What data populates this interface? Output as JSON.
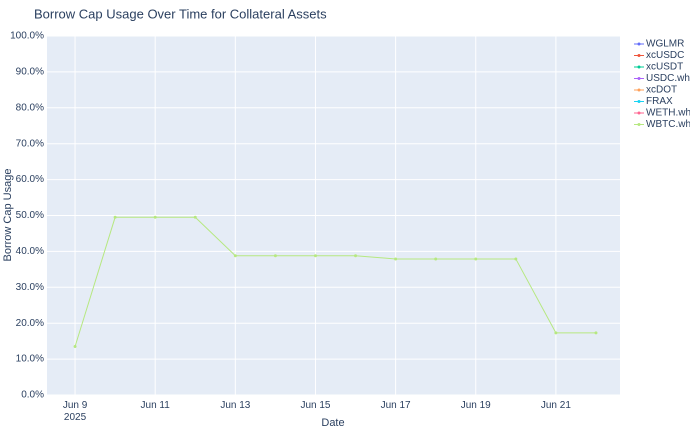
{
  "chart_data": {
    "type": "line",
    "title": "Borrow Cap Usage Over Time for Collateral Assets",
    "xlabel": "Date",
    "ylabel": "Borrow Cap Usage",
    "x": [
      "2025-06-09",
      "2025-06-10",
      "2025-06-11",
      "2025-06-12",
      "2025-06-13",
      "2025-06-14",
      "2025-06-15",
      "2025-06-16",
      "2025-06-17",
      "2025-06-18",
      "2025-06-19",
      "2025-06-20",
      "2025-06-21",
      "2025-06-22"
    ],
    "series": [
      {
        "name": "WGLMR",
        "color": "#636efa",
        "values": [
          null,
          null,
          null,
          null,
          null,
          null,
          null,
          null,
          null,
          null,
          null,
          null,
          null,
          null
        ]
      },
      {
        "name": "xcUSDC",
        "color": "#EF553B",
        "values": [
          null,
          null,
          null,
          null,
          null,
          null,
          null,
          null,
          null,
          null,
          null,
          null,
          null,
          null
        ]
      },
      {
        "name": "xcUSDT",
        "color": "#00cc96",
        "values": [
          null,
          null,
          null,
          null,
          null,
          null,
          null,
          null,
          null,
          null,
          null,
          null,
          null,
          null
        ]
      },
      {
        "name": "USDC.wh",
        "color": "#ab63fa",
        "values": [
          null,
          null,
          null,
          null,
          null,
          null,
          null,
          null,
          null,
          null,
          null,
          null,
          null,
          null
        ]
      },
      {
        "name": "xcDOT",
        "color": "#FFA15A",
        "values": [
          null,
          null,
          null,
          null,
          null,
          null,
          null,
          null,
          null,
          null,
          null,
          null,
          null,
          null
        ]
      },
      {
        "name": "FRAX",
        "color": "#19d3f3",
        "values": [
          null,
          null,
          null,
          null,
          null,
          null,
          null,
          null,
          null,
          null,
          null,
          null,
          null,
          null
        ]
      },
      {
        "name": "WETH.wh",
        "color": "#FF6692",
        "values": [
          null,
          null,
          null,
          null,
          null,
          null,
          null,
          null,
          null,
          null,
          null,
          null,
          null,
          null
        ]
      },
      {
        "name": "WBTC.wh",
        "color": "#B6E880",
        "values": [
          13.5,
          49.5,
          49.5,
          49.5,
          38.8,
          38.8,
          38.8,
          38.8,
          37.9,
          37.9,
          37.9,
          37.9,
          17.3,
          17.3
        ]
      }
    ],
    "xlim": [
      "2025-06-08T07:12",
      "2025-06-22T14:24"
    ],
    "xticks": [
      {
        "value": "2025-06-09",
        "label": "Jun 9\n2025"
      },
      {
        "value": "2025-06-11",
        "label": "Jun 11"
      },
      {
        "value": "2025-06-13",
        "label": "Jun 13"
      },
      {
        "value": "2025-06-15",
        "label": "Jun 15"
      },
      {
        "value": "2025-06-17",
        "label": "Jun 17"
      },
      {
        "value": "2025-06-19",
        "label": "Jun 19"
      },
      {
        "value": "2025-06-21",
        "label": "Jun 21"
      }
    ],
    "ylim": [
      0,
      100
    ],
    "yticks": [
      {
        "value": 0,
        "label": "0.0%"
      },
      {
        "value": 10,
        "label": "10.0%"
      },
      {
        "value": 20,
        "label": "20.0%"
      },
      {
        "value": 30,
        "label": "30.0%"
      },
      {
        "value": 40,
        "label": "40.0%"
      },
      {
        "value": 50,
        "label": "50.0%"
      },
      {
        "value": 60,
        "label": "60.0%"
      },
      {
        "value": 70,
        "label": "70.0%"
      },
      {
        "value": 80,
        "label": "80.0%"
      },
      {
        "value": 90,
        "label": "90.0%"
      },
      {
        "value": 100,
        "label": "100.0%"
      }
    ],
    "grid": true,
    "legend": "right"
  }
}
